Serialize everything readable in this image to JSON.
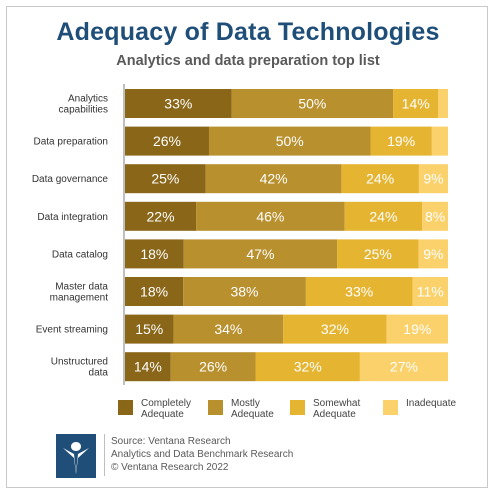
{
  "title": "Adequacy of Data Technologies",
  "subtitle": "Analytics and data preparation top list",
  "colors": {
    "completely": "#8a6619",
    "mostly": "#b8902e",
    "somewhat": "#e5b532",
    "inadequate": "#fbd16b",
    "title": "#1f4e79",
    "logo": "#1f4e79"
  },
  "chart_data": {
    "type": "bar",
    "orientation": "horizontal",
    "stacked": true,
    "categories": [
      "Analytics capabilities",
      "Data preparation",
      "Data governance",
      "Data integration",
      "Data catalog",
      "Master data management",
      "Event streaming",
      "Unstructured data"
    ],
    "category_lines": [
      [
        "Analytics",
        "capabilities"
      ],
      [
        "Data preparation"
      ],
      [
        "Data governance"
      ],
      [
        "Data integration"
      ],
      [
        "Data catalog"
      ],
      [
        "Master data",
        "management"
      ],
      [
        "Event streaming"
      ],
      [
        "Unstructured",
        "data"
      ]
    ],
    "series": [
      {
        "name": "Completely Adequate",
        "values": [
          33,
          26,
          25,
          22,
          18,
          18,
          15,
          14
        ]
      },
      {
        "name": "Mostly Adequate",
        "values": [
          50,
          50,
          42,
          46,
          47,
          38,
          34,
          26
        ]
      },
      {
        "name": "Somewhat Adequate",
        "values": [
          14,
          19,
          24,
          24,
          25,
          33,
          32,
          32
        ]
      },
      {
        "name": "Inadequate",
        "values": [
          3,
          5,
          9,
          8,
          9,
          11,
          19,
          27
        ]
      }
    ],
    "data_labels": [
      [
        "33%",
        "50%",
        "14%",
        ""
      ],
      [
        "26%",
        "50%",
        "19%",
        ""
      ],
      [
        "25%",
        "42%",
        "24%",
        "9%"
      ],
      [
        "22%",
        "46%",
        "24%",
        "8%"
      ],
      [
        "18%",
        "47%",
        "25%",
        "9%"
      ],
      [
        "18%",
        "38%",
        "33%",
        "11%"
      ],
      [
        "15%",
        "34%",
        "32%",
        "19%"
      ],
      [
        "14%",
        "26%",
        "32%",
        "27%"
      ]
    ],
    "xlim": [
      0,
      100
    ],
    "grid": false,
    "legend_position": "bottom"
  },
  "legend": [
    {
      "lines": [
        "Completely",
        "Adequate"
      ],
      "color_key": "completely"
    },
    {
      "lines": [
        "Mostly",
        "Adequate"
      ],
      "color_key": "mostly"
    },
    {
      "lines": [
        "Somewhat",
        "Adequate"
      ],
      "color_key": "somewhat"
    },
    {
      "lines": [
        "Inadequate"
      ],
      "color_key": "inadequate"
    }
  ],
  "footer": {
    "line1": "Source: Ventana Research",
    "line2": "Analytics and Data Benchmark Research",
    "line3": "© Ventana Research 2022"
  },
  "logo_icon": "ventana-v-logo"
}
